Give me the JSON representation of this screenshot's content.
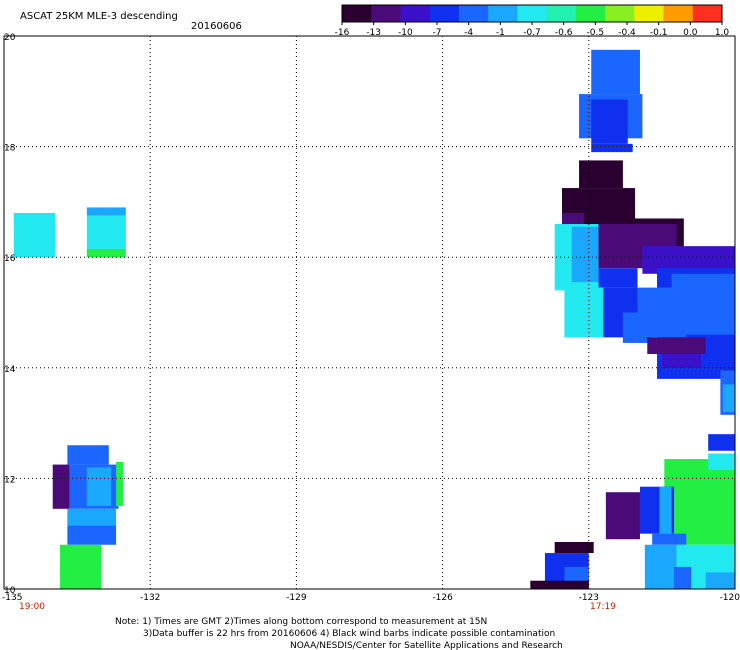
{
  "header": {
    "title": "ASCAT 25KM MLE-3 descending",
    "date": "20160606"
  },
  "colorbar": {
    "ticks": [
      "-16",
      "-13",
      "-10",
      "-7",
      "-4",
      "-1",
      "-0.7",
      "-0.6",
      "-0.5",
      "-0.4",
      "-0.1",
      "0.0",
      "1.0"
    ],
    "colors": [
      "#2a0030",
      "#4a0a78",
      "#3a10c8",
      "#1030f0",
      "#1a66ff",
      "#1aa8ff",
      "#22e8f0",
      "#22f0b0",
      "#22ee44",
      "#88f020",
      "#eeee00",
      "#ff9a00",
      "#ff3020"
    ]
  },
  "axes": {
    "lat_labels": [
      "20",
      "18",
      "16",
      "14",
      "12",
      "10"
    ],
    "lon_labels": [
      "-135",
      "-132",
      "-129",
      "-126",
      "-123",
      "-120"
    ],
    "time_labels": [
      "19:00",
      "17:19"
    ]
  },
  "map": {
    "lat_range": [
      10,
      20
    ],
    "lon_range": [
      -135,
      -120
    ],
    "cells": [
      {
        "lon": -134.8,
        "lat": 16.8,
        "w": 0.85,
        "h": 0.8,
        "c": "#22e8f0"
      },
      {
        "lon": -133.3,
        "lat": 16.9,
        "w": 0.8,
        "h": 0.15,
        "c": "#1aa8ff"
      },
      {
        "lon": -133.3,
        "lat": 16.75,
        "w": 0.8,
        "h": 0.6,
        "c": "#22e8f0"
      },
      {
        "lon": -133.3,
        "lat": 16.15,
        "w": 0.8,
        "h": 0.15,
        "c": "#22ee44"
      },
      {
        "lon": -133.7,
        "lat": 12.6,
        "w": 0.85,
        "h": 0.35,
        "c": "#1a66ff"
      },
      {
        "lon": -134.0,
        "lat": 12.25,
        "w": 0.35,
        "h": 0.8,
        "c": "#4a0a78"
      },
      {
        "lon": -133.65,
        "lat": 12.25,
        "w": 1.0,
        "h": 0.8,
        "c": "#1a66ff"
      },
      {
        "lon": -133.3,
        "lat": 12.2,
        "w": 0.5,
        "h": 0.7,
        "c": "#1aa8ff"
      },
      {
        "lon": -132.7,
        "lat": 12.3,
        "w": 0.15,
        "h": 0.8,
        "c": "#22ee44"
      },
      {
        "lon": -133.7,
        "lat": 11.45,
        "w": 1.0,
        "h": 0.3,
        "c": "#1aa8ff"
      },
      {
        "lon": -133.7,
        "lat": 11.15,
        "w": 1.0,
        "h": 0.35,
        "c": "#1a66ff"
      },
      {
        "lon": -133.85,
        "lat": 10.8,
        "w": 0.85,
        "h": 0.8,
        "c": "#22ee44"
      },
      {
        "lon": -122.95,
        "lat": 19.75,
        "w": 1.0,
        "h": 0.8,
        "c": "#1a66ff"
      },
      {
        "lon": -123.2,
        "lat": 18.95,
        "w": 1.3,
        "h": 0.8,
        "c": "#1a66ff"
      },
      {
        "lon": -122.95,
        "lat": 18.85,
        "w": 0.75,
        "h": 0.8,
        "c": "#1030f0"
      },
      {
        "lon": -122.95,
        "lat": 18.05,
        "w": 0.85,
        "h": 0.15,
        "c": "#1030f0"
      },
      {
        "lon": -123.2,
        "lat": 17.75,
        "w": 0.9,
        "h": 0.5,
        "c": "#2a0030"
      },
      {
        "lon": -123.55,
        "lat": 17.25,
        "w": 1.5,
        "h": 0.55,
        "c": "#2a0030"
      },
      {
        "lon": -123.55,
        "lat": 16.7,
        "w": 2.5,
        "h": 0.75,
        "c": "#2a0030"
      },
      {
        "lon": -123.55,
        "lat": 16.8,
        "w": 0.45,
        "h": 0.95,
        "c": "#4a0a78"
      },
      {
        "lon": -123.7,
        "lat": 16.6,
        "w": 0.9,
        "h": 1.2,
        "c": "#22e8f0"
      },
      {
        "lon": -123.35,
        "lat": 16.55,
        "w": 0.55,
        "h": 1.0,
        "c": "#1aa8ff"
      },
      {
        "lon": -122.8,
        "lat": 16.6,
        "w": 1.6,
        "h": 0.8,
        "c": "#4a0a78"
      },
      {
        "lon": -122.8,
        "lat": 15.8,
        "w": 0.8,
        "h": 0.35,
        "c": "#1030f0"
      },
      {
        "lon": -121.9,
        "lat": 16.2,
        "w": 1.9,
        "h": 0.5,
        "c": "#3a10c8"
      },
      {
        "lon": -121.6,
        "lat": 15.8,
        "w": 1.6,
        "h": 2.0,
        "c": "#1030f0"
      },
      {
        "lon": -121.3,
        "lat": 15.7,
        "w": 1.3,
        "h": 1.1,
        "c": "#1a66ff"
      },
      {
        "lon": -122.0,
        "lat": 15.45,
        "w": 1.0,
        "h": 0.9,
        "c": "#1a66ff"
      },
      {
        "lon": -123.5,
        "lat": 15.45,
        "w": 0.8,
        "h": 0.9,
        "c": "#22e8f0"
      },
      {
        "lon": -122.7,
        "lat": 15.45,
        "w": 0.7,
        "h": 0.9,
        "c": "#1030f0"
      },
      {
        "lon": -122.3,
        "lat": 15.0,
        "w": 0.6,
        "h": 0.55,
        "c": "#1a66ff"
      },
      {
        "lon": -121.8,
        "lat": 14.55,
        "w": 1.2,
        "h": 0.3,
        "c": "#4a0a78"
      },
      {
        "lon": -121.5,
        "lat": 14.25,
        "w": 0.85,
        "h": 0.25,
        "c": "#3a10c8"
      },
      {
        "lon": -120.7,
        "lat": 14.25,
        "w": 0.6,
        "h": 0.25,
        "c": "#1030f0"
      },
      {
        "lon": -120.3,
        "lat": 13.95,
        "w": 0.3,
        "h": 0.8,
        "c": "#1a66ff"
      },
      {
        "lon": -120.25,
        "lat": 13.7,
        "w": 0.25,
        "h": 0.5,
        "c": "#1aa8ff"
      },
      {
        "lon": -120.55,
        "lat": 12.8,
        "w": 0.55,
        "h": 0.3,
        "c": "#1030f0"
      },
      {
        "lon": -121.45,
        "lat": 12.35,
        "w": 1.45,
        "h": 0.6,
        "c": "#22ee44"
      },
      {
        "lon": -120.55,
        "lat": 12.45,
        "w": 0.55,
        "h": 0.3,
        "c": "#22e8f0"
      },
      {
        "lon": -121.25,
        "lat": 11.9,
        "w": 1.25,
        "h": 1.1,
        "c": "#22ee44"
      },
      {
        "lon": -121.95,
        "lat": 11.85,
        "w": 0.7,
        "h": 0.85,
        "c": "#1030f0"
      },
      {
        "lon": -122.65,
        "lat": 11.75,
        "w": 0.7,
        "h": 0.85,
        "c": "#4a0a78"
      },
      {
        "lon": -121.55,
        "lat": 11.85,
        "w": 0.25,
        "h": 0.9,
        "c": "#1aa8ff"
      },
      {
        "lon": -121.7,
        "lat": 11.0,
        "w": 0.7,
        "h": 0.2,
        "c": "#1a66ff"
      },
      {
        "lon": -121.85,
        "lat": 10.8,
        "w": 0.65,
        "h": 0.8,
        "c": "#1aa8ff"
      },
      {
        "lon": -121.2,
        "lat": 10.8,
        "w": 1.2,
        "h": 0.8,
        "c": "#22e8f0"
      },
      {
        "lon": -120.6,
        "lat": 10.3,
        "w": 0.6,
        "h": 0.3,
        "c": "#1aa8ff"
      },
      {
        "lon": -121.25,
        "lat": 10.4,
        "w": 0.35,
        "h": 0.4,
        "c": "#1a66ff"
      },
      {
        "lon": -123.7,
        "lat": 10.85,
        "w": 0.8,
        "h": 0.2,
        "c": "#2a0030"
      },
      {
        "lon": -123.9,
        "lat": 10.65,
        "w": 0.9,
        "h": 0.65,
        "c": "#1030f0"
      },
      {
        "lon": -123.5,
        "lat": 10.4,
        "w": 0.5,
        "h": 0.4,
        "c": "#1a66ff"
      },
      {
        "lon": -124.2,
        "lat": 10.15,
        "w": 1.2,
        "h": 0.15,
        "c": "#2a0030"
      }
    ]
  },
  "footer": {
    "line1": "Note: 1) Times are GMT 2)Times along bottom correspond to measurement at 15N",
    "line2": "3)Data buffer is 22 hrs from 20160606 4) Black wind barbs indicate possible contamination",
    "line3": "NOAA/NESDIS/Center for Satellite Applications and Research"
  }
}
